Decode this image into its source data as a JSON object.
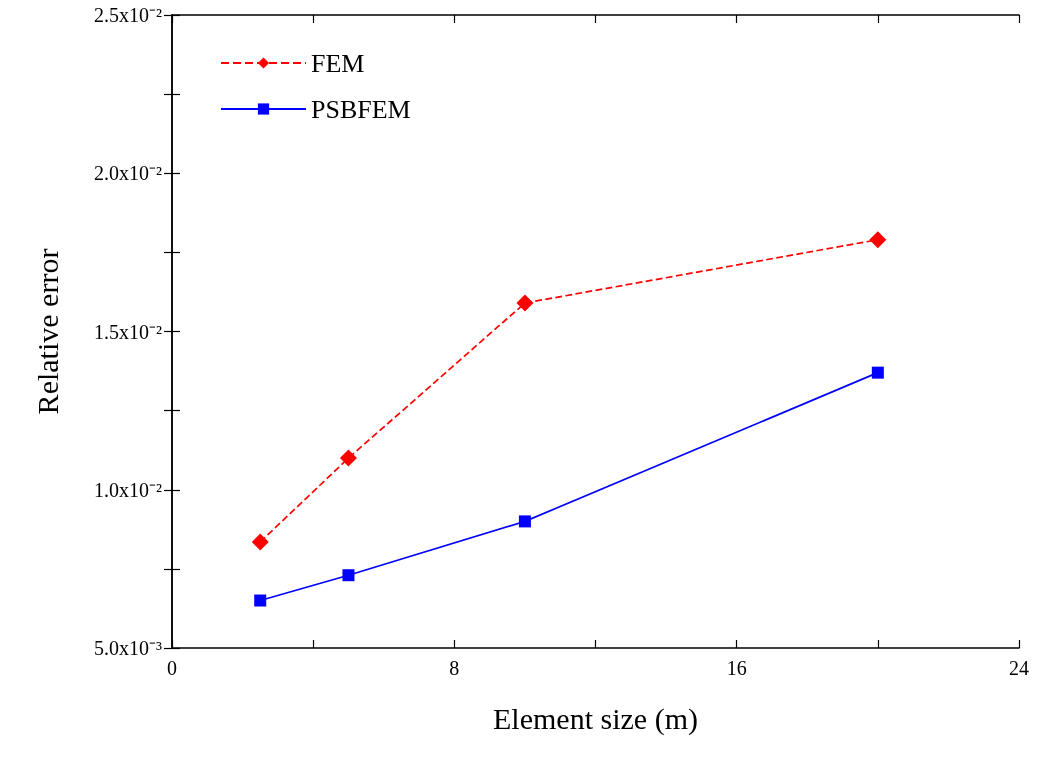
{
  "chart_data": {
    "type": "line",
    "xlabel": "Element size (m)",
    "ylabel": "Relative error",
    "x": [
      2.5,
      5,
      10,
      20
    ],
    "series": [
      {
        "name": "FEM",
        "color": "#ff0000",
        "values": [
          0.00835,
          0.011,
          0.0159,
          0.0179
        ],
        "marker": "diamond",
        "line_style": "dashed"
      },
      {
        "name": "PSBFEM",
        "color": "#0000ff",
        "values": [
          0.0065,
          0.0073,
          0.009,
          0.0137
        ],
        "marker": "square",
        "line_style": "solid"
      }
    ],
    "xlim": [
      0,
      24
    ],
    "xticks": [
      0,
      {
        "value": 4,
        "label": null
      },
      8,
      {
        "value": 12,
        "label": null
      },
      16,
      {
        "value": 20,
        "label": null
      },
      24
    ],
    "ylim": [
      0.005,
      0.025
    ],
    "yticks": [
      {
        "value": 0.005,
        "label": "5.0x10⁻³"
      },
      {
        "value": 0.0075,
        "label": null
      },
      {
        "value": 0.01,
        "label": "1.0x10⁻²"
      },
      {
        "value": 0.0125,
        "label": null
      },
      {
        "value": 0.015,
        "label": "1.5x10⁻²"
      },
      {
        "value": 0.0175,
        "label": null
      },
      {
        "value": 0.02,
        "label": "2.0x10⁻²"
      },
      {
        "value": 0.0225,
        "label": null
      },
      {
        "value": 0.025,
        "label": "2.5x10⁻²"
      }
    ],
    "grid": false,
    "legend": "top left"
  }
}
